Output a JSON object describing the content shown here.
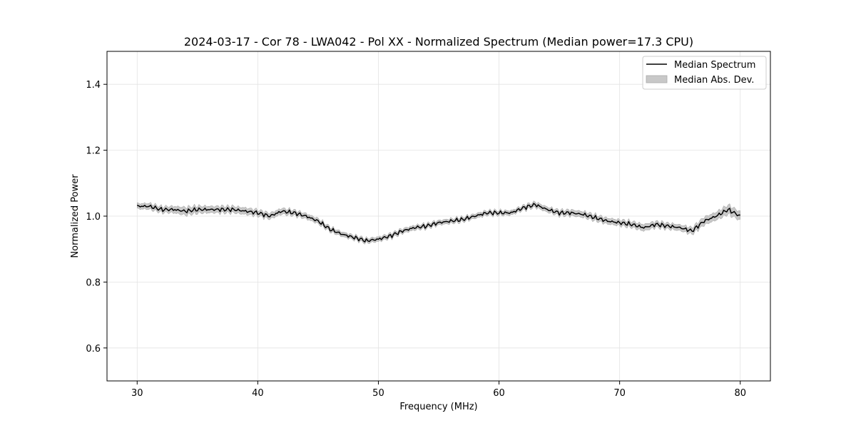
{
  "chart_data": {
    "type": "line",
    "title": "2024-03-17 - Cor 78 - LWA042 - Pol XX - Normalized Spectrum (Median power=17.3 CPU)",
    "xlabel": "Frequency (MHz)",
    "ylabel": "Normalized Power",
    "xlim": [
      27.5,
      82.5
    ],
    "ylim": [
      0.5,
      1.5
    ],
    "xticks": [
      30,
      40,
      50,
      60,
      70,
      80
    ],
    "yticks": [
      0.6,
      0.8,
      1.0,
      1.2,
      1.4
    ],
    "xtick_labels": [
      "30",
      "40",
      "50",
      "60",
      "70",
      "80"
    ],
    "ytick_labels": [
      "0.6",
      "0.8",
      "1.0",
      "1.2",
      "1.4"
    ],
    "grid": true,
    "legend_position": "top-right",
    "series": [
      {
        "name": "Median Spectrum",
        "color": "#000000",
        "x": [
          30,
          31,
          32,
          33,
          34,
          35,
          36,
          37,
          38,
          39,
          40,
          41,
          42,
          43,
          44,
          45,
          46,
          47,
          48,
          49,
          50,
          51,
          52,
          53,
          54,
          55,
          56,
          57,
          58,
          59,
          60,
          61,
          62,
          63,
          64,
          65,
          66,
          67,
          68,
          69,
          70,
          71,
          72,
          73,
          74,
          75,
          76,
          77,
          78,
          79,
          80
        ],
        "values": [
          1.03,
          1.03,
          1.02,
          1.02,
          1.015,
          1.02,
          1.02,
          1.02,
          1.02,
          1.015,
          1.01,
          1.0,
          1.015,
          1.01,
          1.0,
          0.985,
          0.96,
          0.945,
          0.935,
          0.925,
          0.93,
          0.94,
          0.955,
          0.965,
          0.97,
          0.98,
          0.985,
          0.99,
          1.0,
          1.01,
          1.01,
          1.01,
          1.025,
          1.035,
          1.02,
          1.01,
          1.01,
          1.005,
          0.995,
          0.985,
          0.98,
          0.975,
          0.965,
          0.975,
          0.97,
          0.965,
          0.955,
          0.985,
          1.0,
          1.02,
          1.0
        ]
      }
    ],
    "band": {
      "name": "Median Abs. Dev.",
      "color": "#c8c8c8",
      "half_width": [
        0.008,
        0.009,
        0.009,
        0.01,
        0.012,
        0.011,
        0.01,
        0.01,
        0.01,
        0.01,
        0.009,
        0.009,
        0.009,
        0.008,
        0.008,
        0.008,
        0.007,
        0.007,
        0.007,
        0.007,
        0.007,
        0.007,
        0.007,
        0.007,
        0.007,
        0.007,
        0.007,
        0.007,
        0.007,
        0.007,
        0.007,
        0.007,
        0.007,
        0.008,
        0.008,
        0.008,
        0.009,
        0.009,
        0.009,
        0.009,
        0.009,
        0.009,
        0.01,
        0.009,
        0.009,
        0.009,
        0.01,
        0.012,
        0.012,
        0.014,
        0.013
      ]
    }
  }
}
